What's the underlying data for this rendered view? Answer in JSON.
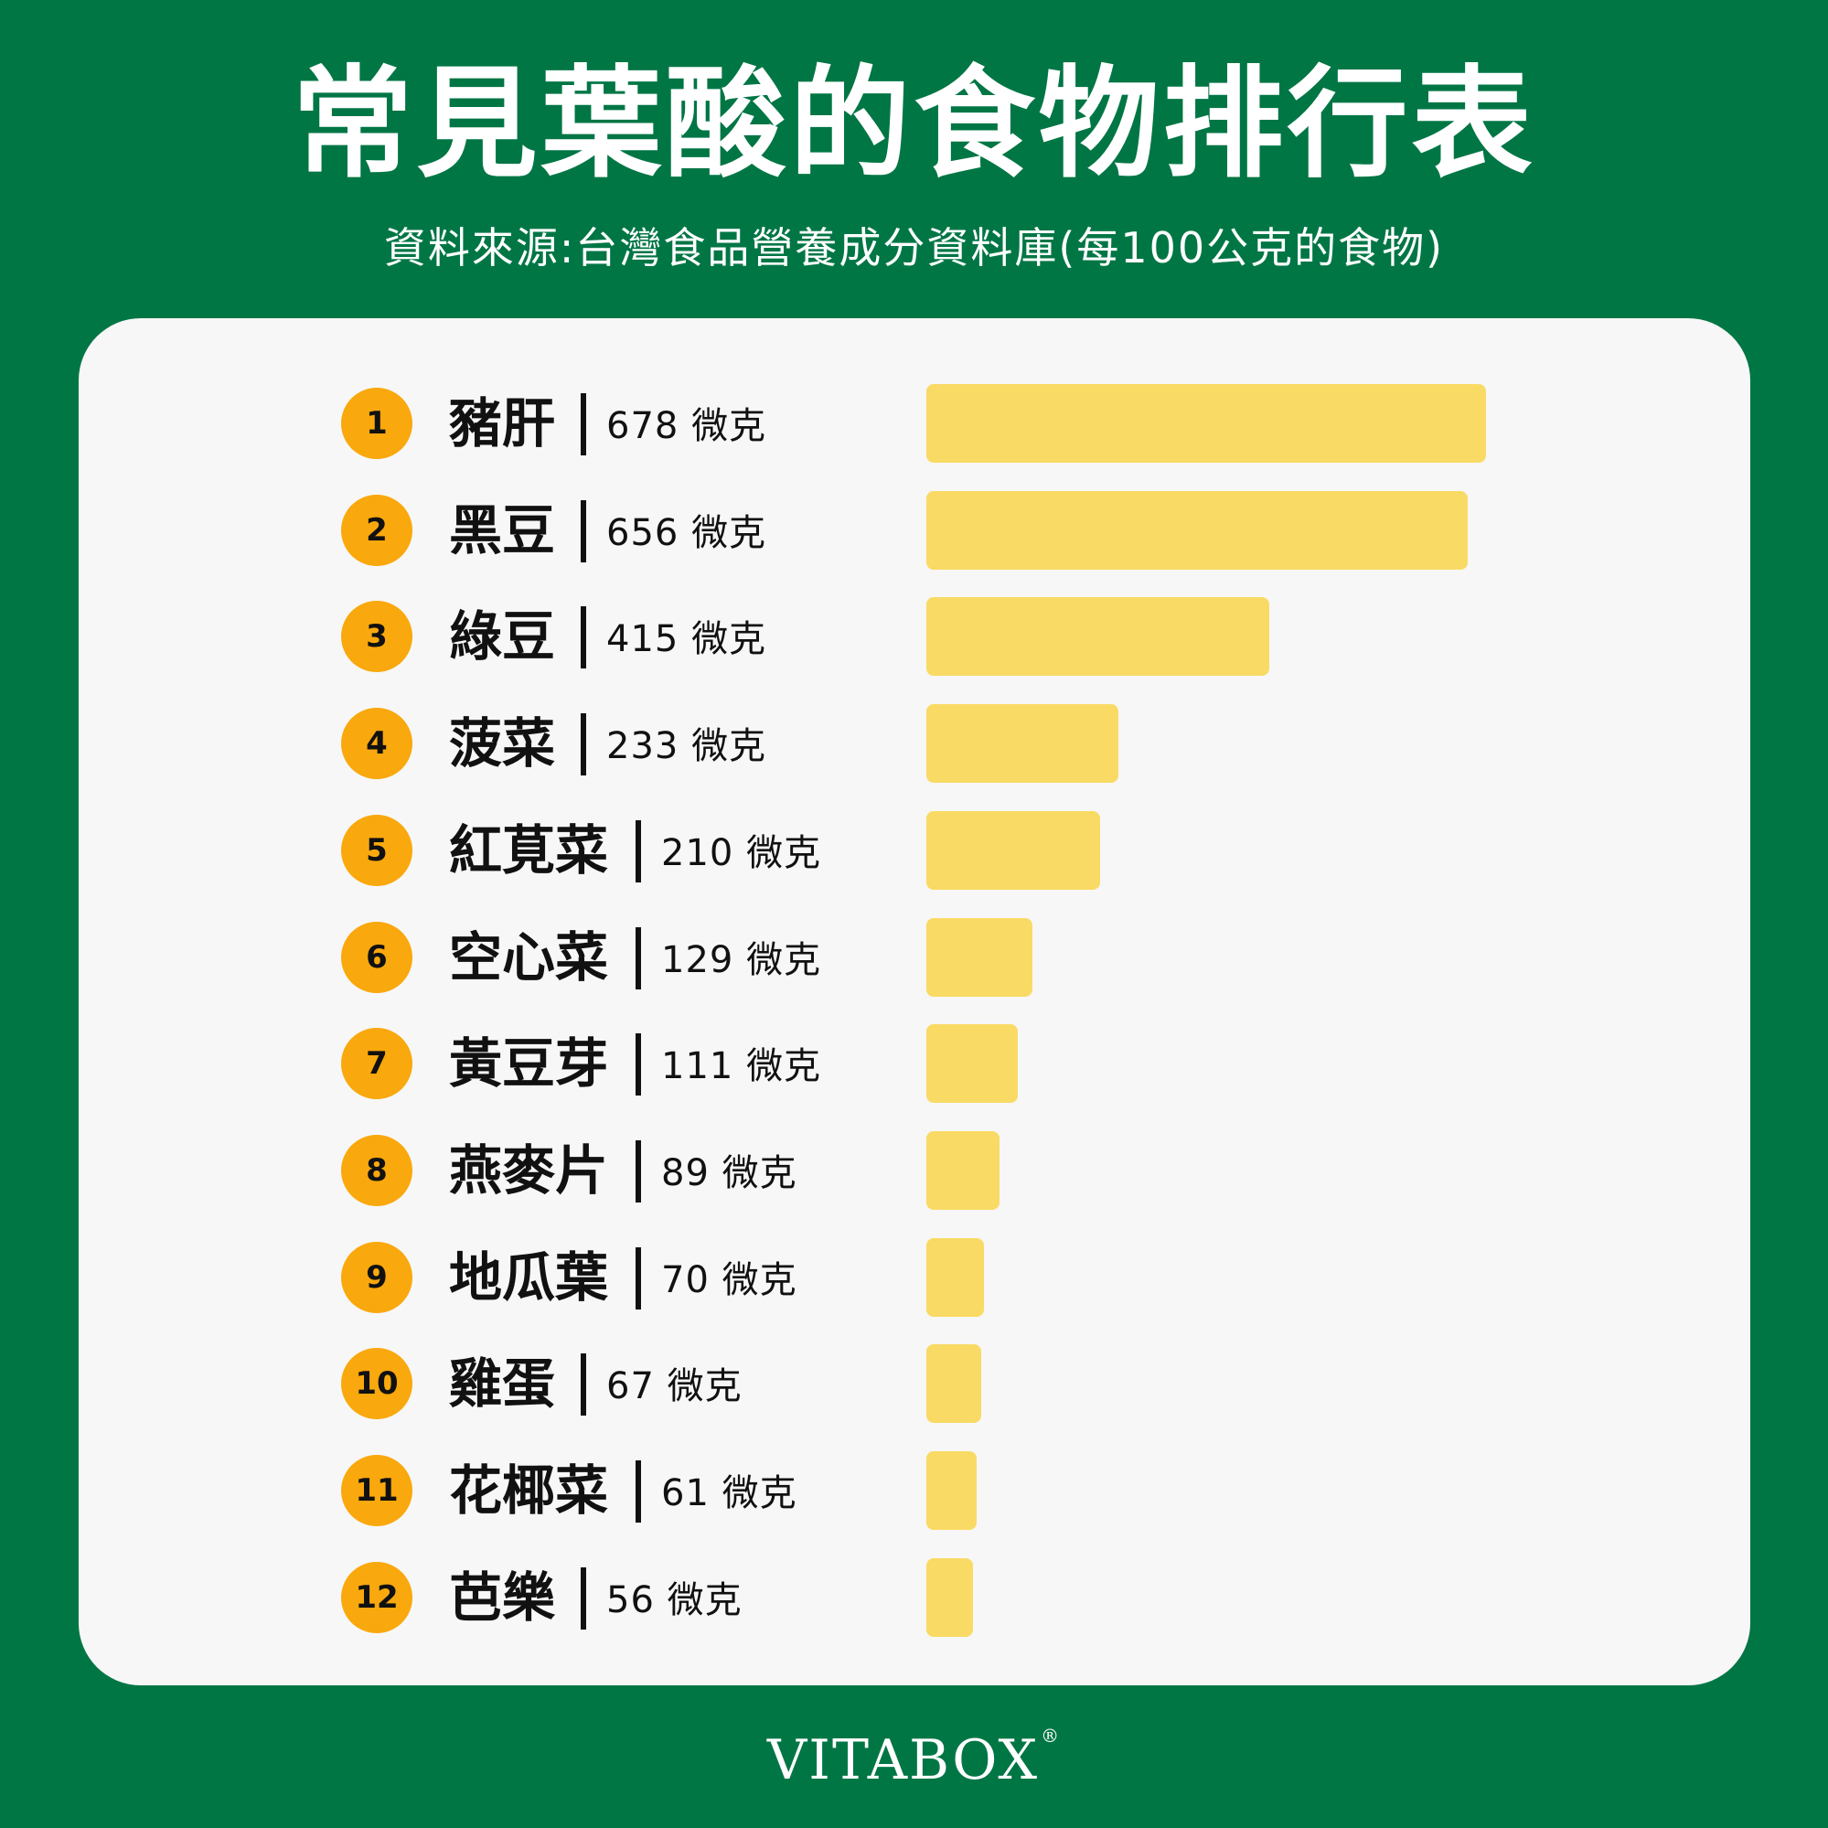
{
  "title": "常見葉酸的食物排行表",
  "subtitle": "資料來源:台灣食品營養成分資料庫(每100公克的食物)",
  "brand": {
    "name": "VITABOX",
    "mark": "®"
  },
  "colors": {
    "background": "#017645",
    "card": "#f7f7f7",
    "rank_badge": "#f9a80d",
    "bar": "#f9da64"
  },
  "chart_data": {
    "type": "bar",
    "orientation": "horizontal",
    "unit": "微克",
    "categories": [
      "豬肝",
      "黑豆",
      "綠豆",
      "菠菜",
      "紅莧菜",
      "空心菜",
      "黃豆芽",
      "燕麥片",
      "地瓜葉",
      "雞蛋",
      "花椰菜",
      "芭樂"
    ],
    "values": [
      678,
      656,
      415,
      233,
      210,
      129,
      111,
      89,
      70,
      67,
      61,
      56
    ],
    "labels": [
      "678 微克",
      "656 微克",
      "415 微克",
      "233 微克",
      "210 微克",
      "129 微克",
      "111 微克",
      "89 微克",
      "70 微克",
      "67 微克",
      "61 微克",
      "56 微克"
    ],
    "ranks": [
      "1",
      "2",
      "3",
      "4",
      "5",
      "6",
      "7",
      "8",
      "9",
      "10",
      "11",
      "12"
    ],
    "title": "常見葉酸的食物排行表",
    "xlim": [
      0,
      678
    ],
    "grid": false,
    "legend": "none"
  }
}
